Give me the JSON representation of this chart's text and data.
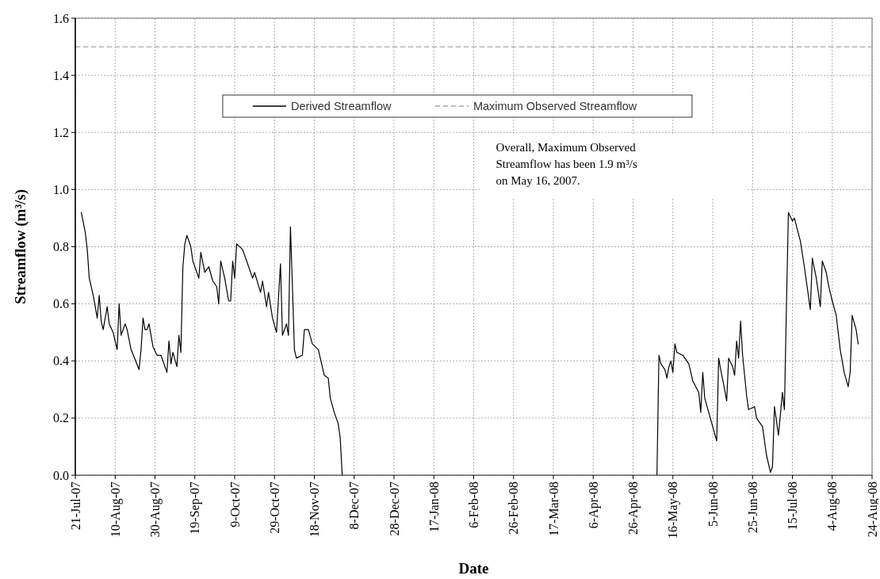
{
  "chart_data": {
    "type": "line",
    "xlabel": "Date",
    "ylabel": "Streamflow (m³/s)",
    "xlim": [
      "2007-07-21",
      "2008-08-24"
    ],
    "xticks": [
      {
        "value": "2007-07-21",
        "label": "21-Jul-07"
      },
      {
        "value": "2007-08-10",
        "label": "10-Aug-07"
      },
      {
        "value": "2007-08-30",
        "label": "30-Aug-07"
      },
      {
        "value": "2007-09-19",
        "label": "19-Sep-07"
      },
      {
        "value": "2007-10-09",
        "label": "9-Oct-07"
      },
      {
        "value": "2007-10-29",
        "label": "29-Oct-07"
      },
      {
        "value": "2007-11-18",
        "label": "18-Nov-07"
      },
      {
        "value": "2007-12-08",
        "label": "8-Dec-07"
      },
      {
        "value": "2007-12-28",
        "label": "28-Dec-07"
      },
      {
        "value": "2008-01-17",
        "label": "17-Jan-08"
      },
      {
        "value": "2008-02-06",
        "label": "6-Feb-08"
      },
      {
        "value": "2008-02-26",
        "label": "26-Feb-08"
      },
      {
        "value": "2008-03-17",
        "label": "17-Mar-08"
      },
      {
        "value": "2008-04-06",
        "label": "6-Apr-08"
      },
      {
        "value": "2008-04-26",
        "label": "26-Apr-08"
      },
      {
        "value": "2008-05-16",
        "label": "16-May-08"
      },
      {
        "value": "2008-06-05",
        "label": "5-Jun-08"
      },
      {
        "value": "2008-06-25",
        "label": "25-Jun-08"
      },
      {
        "value": "2008-07-15",
        "label": "15-Jul-08"
      },
      {
        "value": "2008-08-04",
        "label": "4-Aug-08"
      },
      {
        "value": "2008-08-24",
        "label": "24-Aug-08"
      }
    ],
    "ylim": [
      0,
      1.6
    ],
    "yticks": [
      {
        "value": 0,
        "label": "0.0"
      },
      0.2,
      0.4,
      0.6,
      0.8,
      {
        "value": 1,
        "label": "1.0"
      },
      1.2,
      1.4,
      1.6
    ],
    "grid": true,
    "legend": "top",
    "annotations": [
      "Overall, Maximum Observed Streamflow has been 1.9 m³/s on May 16, 2007."
    ],
    "series": [
      {
        "name": "Derived Streamflow",
        "color": "#000000",
        "line_style": "solid",
        "x": [
          "2007-07-24",
          "2007-07-26",
          "2007-07-27",
          "2007-07-28",
          "2007-07-30",
          "2007-08-01",
          "2007-08-02",
          "2007-08-03",
          "2007-08-04",
          "2007-08-06",
          "2007-08-07",
          "2007-08-09",
          "2007-08-11",
          "2007-08-12",
          "2007-08-13",
          "2007-08-15",
          "2007-08-16",
          "2007-08-18",
          "2007-08-22",
          "2007-08-23",
          "2007-08-24",
          "2007-08-25",
          "2007-08-26",
          "2007-08-27",
          "2007-08-29",
          "2007-08-31",
          "2007-09-02",
          "2007-09-05",
          "2007-09-06",
          "2007-09-07",
          "2007-09-08",
          "2007-09-10",
          "2007-09-11",
          "2007-09-12",
          "2007-09-13",
          "2007-09-14",
          "2007-09-15",
          "2007-09-17",
          "2007-09-18",
          "2007-09-21",
          "2007-09-22",
          "2007-09-24",
          "2007-09-26",
          "2007-09-28",
          "2007-09-30",
          "2007-10-01",
          "2007-10-02",
          "2007-10-04",
          "2007-10-06",
          "2007-10-07",
          "2007-10-08",
          "2007-10-09",
          "2007-10-10",
          "2007-10-13",
          "2007-10-15",
          "2007-10-18",
          "2007-10-19",
          "2007-10-22",
          "2007-10-23",
          "2007-10-25",
          "2007-10-26",
          "2007-10-28",
          "2007-10-30",
          "2007-11-01",
          "2007-11-02",
          "2007-11-04",
          "2007-11-05",
          "2007-11-06",
          "2007-11-07",
          "2007-11-08",
          "2007-11-09",
          "2007-11-12",
          "2007-11-13",
          "2007-11-15",
          "2007-11-17",
          "2007-11-20",
          "2007-11-23",
          "2007-11-25",
          "2007-11-26",
          "2007-11-28",
          "2007-11-30",
          "2007-12-01",
          "2007-12-02",
          "2008-01-01",
          "2008-05-08",
          "2008-05-09",
          "2008-05-10",
          "2008-05-12",
          "2008-05-13",
          "2008-05-14",
          "2008-05-15",
          "2008-05-16",
          "2008-05-17",
          "2008-05-18",
          "2008-05-21",
          "2008-05-24",
          "2008-05-26",
          "2008-05-29",
          "2008-05-30",
          "2008-05-31",
          "2008-06-01",
          "2008-06-03",
          "2008-06-05",
          "2008-06-07",
          "2008-06-08",
          "2008-06-09",
          "2008-06-11",
          "2008-06-12",
          "2008-06-13",
          "2008-06-15",
          "2008-06-16",
          "2008-06-17",
          "2008-06-18",
          "2008-06-19",
          "2008-06-20",
          "2008-06-22",
          "2008-06-23",
          "2008-06-26",
          "2008-06-27",
          "2008-06-30",
          "2008-07-02",
          "2008-07-04",
          "2008-07-05",
          "2008-07-06",
          "2008-07-08",
          "2008-07-10",
          "2008-07-11",
          "2008-07-12",
          "2008-07-13",
          "2008-07-15",
          "2008-07-16",
          "2008-07-19",
          "2008-07-21",
          "2008-07-24",
          "2008-07-25",
          "2008-07-27",
          "2008-07-29",
          "2008-07-30",
          "2008-08-01",
          "2008-08-02",
          "2008-08-04",
          "2008-08-06",
          "2008-08-08",
          "2008-08-10",
          "2008-08-12",
          "2008-08-13",
          "2008-08-14",
          "2008-08-16",
          "2008-08-17"
        ],
        "values": [
          0.92,
          0.85,
          0.79,
          0.69,
          0.63,
          0.55,
          0.63,
          0.54,
          0.51,
          0.59,
          0.53,
          0.5,
          0.44,
          0.6,
          0.49,
          0.53,
          0.51,
          0.44,
          0.37,
          0.44,
          0.55,
          0.51,
          0.51,
          0.53,
          0.45,
          0.42,
          0.42,
          0.36,
          0.47,
          0.39,
          0.43,
          0.38,
          0.49,
          0.43,
          0.73,
          0.81,
          0.84,
          0.8,
          0.75,
          0.69,
          0.78,
          0.71,
          0.73,
          0.68,
          0.66,
          0.6,
          0.75,
          0.69,
          0.61,
          0.61,
          0.75,
          0.69,
          0.81,
          0.79,
          0.75,
          0.69,
          0.71,
          0.64,
          0.68,
          0.59,
          0.64,
          0.55,
          0.5,
          0.74,
          0.49,
          0.53,
          0.49,
          0.87,
          0.66,
          0.44,
          0.41,
          0.42,
          0.51,
          0.51,
          0.46,
          0.44,
          0.35,
          0.34,
          0.27,
          0.22,
          0.18,
          0.13,
          0,
          null,
          0,
          0.42,
          0.39,
          0.37,
          0.34,
          0.38,
          0.4,
          0.36,
          0.46,
          0.43,
          0.42,
          0.39,
          0.33,
          0.29,
          0.22,
          0.36,
          0.27,
          0.22,
          0.17,
          0.12,
          0.41,
          0.37,
          0.3,
          0.26,
          0.41,
          0.38,
          0.35,
          0.47,
          0.41,
          0.54,
          0.42,
          0.28,
          0.23,
          0.24,
          0.2,
          0.17,
          0.07,
          0.01,
          0.03,
          0.24,
          0.14,
          0.29,
          0.23,
          0.59,
          0.92,
          0.89,
          0.9,
          0.82,
          0.73,
          0.58,
          0.76,
          0.69,
          0.59,
          0.75,
          0.71,
          0.67,
          0.61,
          0.56,
          0.44,
          0.36,
          0.31,
          0.36,
          0.56,
          0.51,
          0.46
        ]
      },
      {
        "name": "Maximum Observed Streamflow",
        "color": "#a6a6a6",
        "line_style": "dashed",
        "x": [
          "2007-07-21",
          "2008-08-24"
        ],
        "values": [
          1.5,
          1.5
        ]
      }
    ]
  }
}
